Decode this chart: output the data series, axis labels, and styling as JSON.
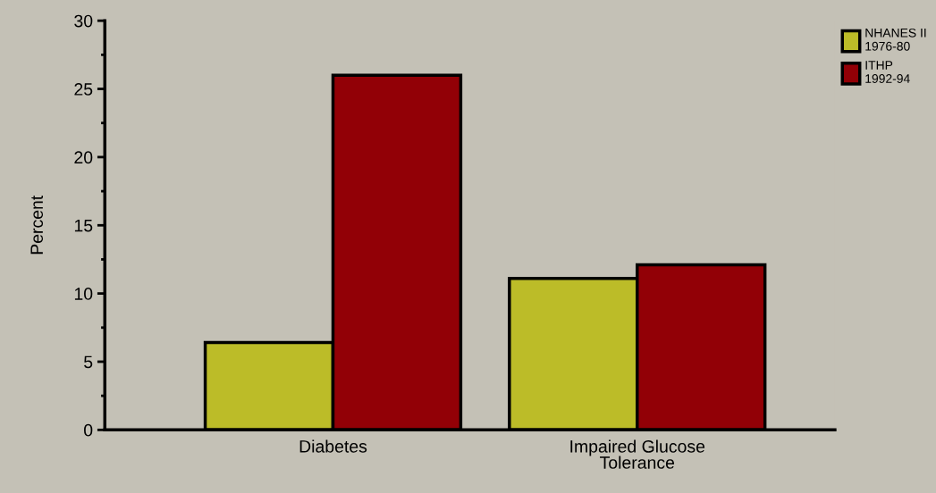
{
  "chart_data": {
    "type": "bar",
    "ylabel": "Percent",
    "categories": [
      "Diabetes",
      "Impaired Glucose\nTolerance"
    ],
    "series": [
      {
        "name": "NHANES II\n1976-80",
        "color": "#bcbc28",
        "values": [
          6.4,
          11.1
        ]
      },
      {
        "name": "ITHP\n1992-94",
        "color": "#920006",
        "values": [
          26.0,
          12.1
        ]
      }
    ],
    "ylim": [
      0,
      30
    ],
    "yticks": [
      0,
      5,
      10,
      15,
      20,
      25,
      30
    ],
    "grid": false,
    "legend": "top right"
  }
}
